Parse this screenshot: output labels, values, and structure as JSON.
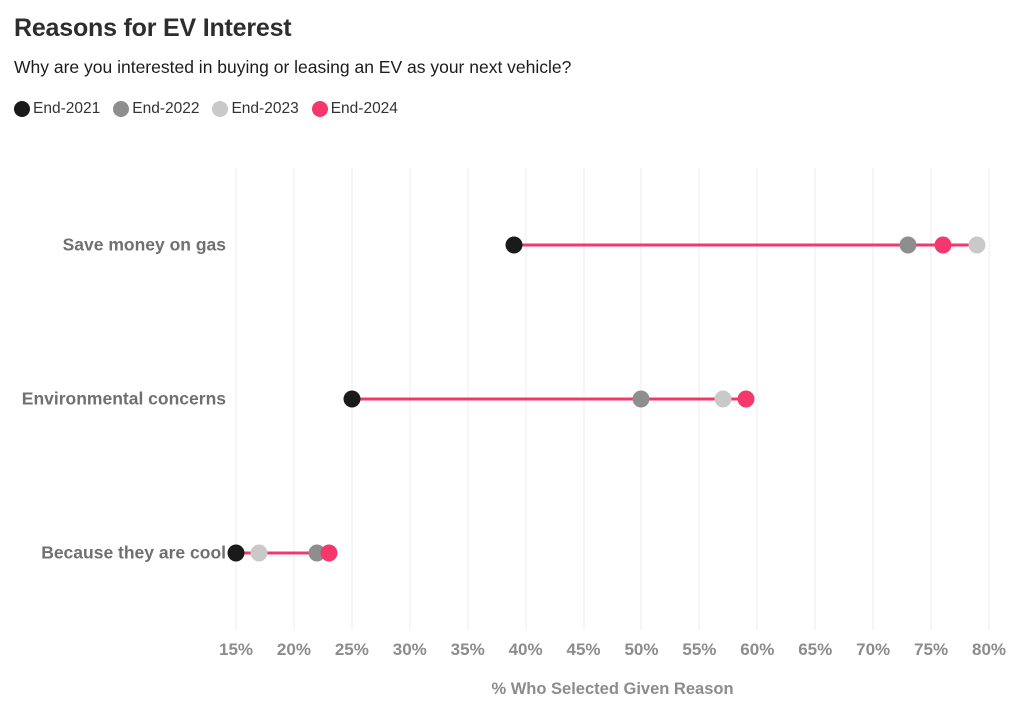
{
  "header": {
    "title": "Reasons for EV Interest",
    "subtitle": "Why are you interested in buying or leasing an EV as your next vehicle?"
  },
  "colors": {
    "accent_pink": "#f4386e",
    "connector_line": "#f4386e"
  },
  "chart_data": {
    "type": "scatter",
    "variant": "dumbbell-dot-plot",
    "title": "Reasons for EV Interest",
    "subtitle": "Why are you interested in buying or leasing an EV as your next vehicle?",
    "categories": [
      "Save money on gas",
      "Environmental concerns",
      "Because they are cool"
    ],
    "series": [
      {
        "name": "End-2021",
        "color": "#1a1a1a",
        "values": [
          39,
          25,
          15
        ]
      },
      {
        "name": "End-2022",
        "color": "#8e8e8e",
        "values": [
          73,
          50,
          22
        ]
      },
      {
        "name": "End-2023",
        "color": "#c9c9c9",
        "values": [
          79,
          57,
          17
        ]
      },
      {
        "name": "End-2024",
        "color": "#f4386e",
        "values": [
          76,
          59,
          23
        ]
      }
    ],
    "xlabel": "% Who Selected Given Reason",
    "x_axis": {
      "min": 15,
      "max": 80,
      "step": 5,
      "tick_suffix": "%"
    },
    "xlim": [
      15,
      80
    ],
    "legend_position": "top-left",
    "grid": "vertical-only",
    "connector_spans": "min-to-max-per-category"
  }
}
